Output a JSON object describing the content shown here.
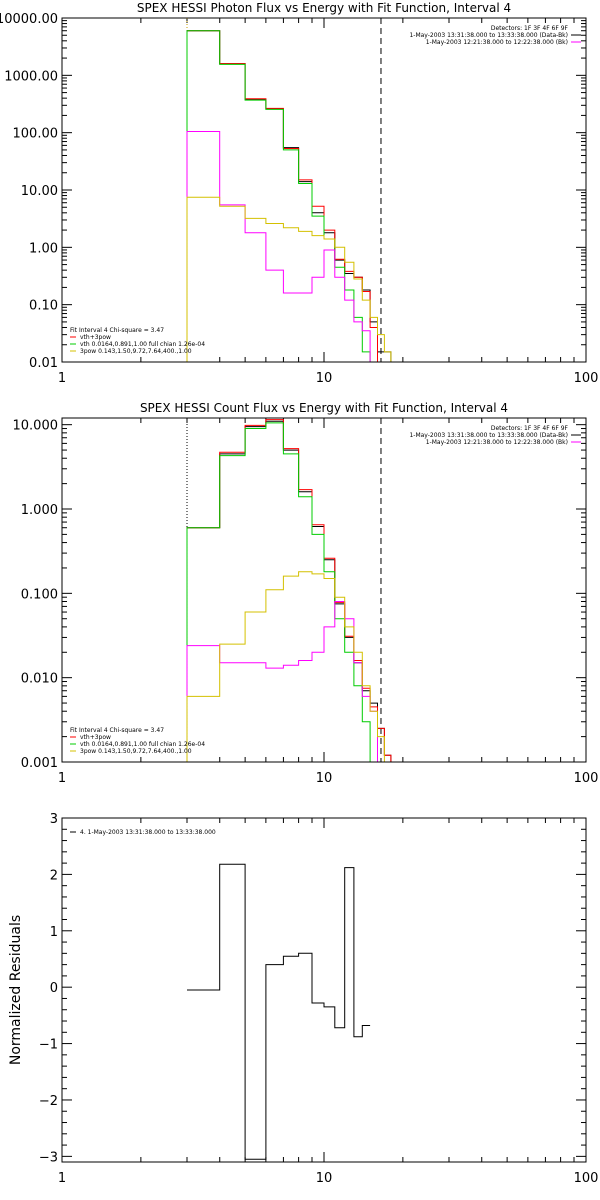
{
  "chart_data": [
    {
      "type": "line",
      "step": true,
      "title": "SPEX HESSI Photon Flux vs Energy with Fit Function, Interval 4",
      "xscale": "log",
      "yscale": "log",
      "xlim": [
        1,
        100
      ],
      "ylim": [
        0.01,
        10000
      ],
      "xticks": [
        {
          "v": 1,
          "label": "1"
        },
        {
          "v": 10,
          "label": "10"
        },
        {
          "v": 100,
          "label": "100"
        }
      ],
      "yticks": [
        {
          "v": 0.01,
          "label": "0.01"
        },
        {
          "v": 0.1,
          "label": "0.10"
        },
        {
          "v": 1,
          "label": "1.00"
        },
        {
          "v": 10,
          "label": "10.00"
        },
        {
          "v": 100,
          "label": "100.00"
        },
        {
          "v": 1000,
          "label": "1000.00"
        },
        {
          "v": 10000,
          "label": "10000.00"
        }
      ],
      "vlines": [
        {
          "x": 3.0,
          "style": "dotted",
          "color": "#c8a000"
        },
        {
          "x": 16.5,
          "style": "dashed",
          "color": "#000000"
        }
      ],
      "info_right": [
        {
          "text": "Detectors: 1F 3F 4F 6F 9F",
          "color": null
        },
        {
          "text": "1-May-2003 13:31:38.000 to 13:33:38.000 (Data-Bk)",
          "color": "#000000"
        },
        {
          "text": "1-May-2003 12:21:38.000 to 12:22:38.000 (Bk)",
          "color": "#ff00ff"
        }
      ],
      "legend_left": [
        {
          "text": "Fit Interval 4   Chi-square = 3.47",
          "color": null
        },
        {
          "text": "vth+3pow",
          "color": "#ff0000"
        },
        {
          "text": "vth 0.0164,0.891,1.00  full chian 1.26e-04",
          "color": "#00cc00"
        },
        {
          "text": "3pow 0.143,1.50,9.72,7.64,400.,1.00",
          "color": "#d4c000"
        }
      ],
      "edges": [
        3,
        4,
        5,
        6,
        7,
        8,
        9,
        10,
        11,
        12,
        13,
        14,
        15,
        16,
        17,
        18,
        19,
        20
      ],
      "series": [
        {
          "color": "#000000",
          "values": [
            6000,
            1600,
            380,
            260,
            55,
            14,
            4.0,
            1.8,
            0.6,
            0.35,
            0.3,
            0.18,
            0.05,
            0.015,
            0.015,
            null,
            null
          ]
        },
        {
          "color": "#ff0000",
          "values": [
            6000,
            1600,
            390,
            265,
            53,
            15,
            5.2,
            2.0,
            0.62,
            0.38,
            0.3,
            0.17,
            0.04,
            null,
            null,
            null,
            null
          ]
        },
        {
          "color": "#00cc00",
          "values": [
            6000,
            1550,
            370,
            255,
            50,
            13,
            3.5,
            1.4,
            0.45,
            0.18,
            0.06,
            0.015,
            null,
            null,
            null,
            null,
            null
          ]
        },
        {
          "color": "#ff00ff",
          "values": [
            105,
            5.5,
            1.8,
            0.4,
            0.16,
            0.16,
            0.3,
            0.9,
            0.3,
            0.12,
            0.05,
            0.035,
            null,
            null,
            null,
            null,
            null
          ]
        },
        {
          "color": "#d4c000",
          "values": [
            7.5,
            5.2,
            3.2,
            2.6,
            2.2,
            1.9,
            1.6,
            1.4,
            1.0,
            0.55,
            0.28,
            0.12,
            0.06,
            0.03,
            0.015,
            null,
            null
          ]
        }
      ]
    },
    {
      "type": "line",
      "step": true,
      "title": "SPEX HESSI Count Flux vs Energy with Fit Function, Interval 4",
      "xscale": "log",
      "yscale": "log",
      "xlim": [
        1,
        100
      ],
      "ylim": [
        0.001,
        12
      ],
      "xticks": [
        {
          "v": 1,
          "label": "1"
        },
        {
          "v": 10,
          "label": "10"
        },
        {
          "v": 100,
          "label": "100"
        }
      ],
      "yticks": [
        {
          "v": 0.001,
          "label": "0.001"
        },
        {
          "v": 0.01,
          "label": "0.010"
        },
        {
          "v": 0.1,
          "label": "0.100"
        },
        {
          "v": 1,
          "label": "1.000"
        },
        {
          "v": 10,
          "label": "10.000"
        }
      ],
      "vlines": [
        {
          "x": 3.0,
          "style": "dotted",
          "color": "#000000"
        },
        {
          "x": 16.5,
          "style": "dashed",
          "color": "#000000"
        }
      ],
      "info_right": [
        {
          "text": "Detectors: 1F 3F 4F 6F 9F",
          "color": null
        },
        {
          "text": "1-May-2003 13:31:38.000 to 13:33:38.000 (Data-Bk)",
          "color": "#000000"
        },
        {
          "text": "1-May-2003 12:21:38.000 to 12:22:38.000 (Bk)",
          "color": "#ff00ff"
        }
      ],
      "legend_left": [
        {
          "text": "Fit Interval 4   Chi-square = 3.47",
          "color": null
        },
        {
          "text": "vth+3pow",
          "color": "#ff0000"
        },
        {
          "text": "vth 0.0164,0.891,1.00  full chian 1.26e-04",
          "color": "#00cc00"
        },
        {
          "text": "3pow 0.143,1.50,9.72,7.64,400.,1.00",
          "color": "#d4c000"
        }
      ],
      "edges": [
        3,
        4,
        5,
        6,
        7,
        8,
        9,
        10,
        11,
        12,
        13,
        14,
        15,
        16,
        17,
        18,
        19,
        20
      ],
      "series": [
        {
          "color": "#000000",
          "values": [
            0.6,
            4.5,
            9.5,
            11,
            5.0,
            1.6,
            0.62,
            0.25,
            0.075,
            0.03,
            0.015,
            0.007,
            0.005,
            0.0025,
            0.0012,
            null,
            null
          ]
        },
        {
          "color": "#ff0000",
          "values": [
            0.6,
            4.7,
            9.8,
            11.5,
            5.2,
            1.7,
            0.65,
            0.26,
            0.078,
            0.031,
            0.016,
            0.0075,
            0.0045,
            0.0025,
            0.0012,
            null,
            null
          ]
        },
        {
          "color": "#00cc00",
          "values": [
            0.6,
            4.3,
            9.0,
            10.5,
            4.5,
            1.4,
            0.5,
            0.18,
            0.05,
            0.02,
            0.008,
            0.003,
            0.001,
            null,
            null,
            null,
            null
          ]
        },
        {
          "color": "#ff00ff",
          "values": [
            0.024,
            0.015,
            0.015,
            0.013,
            0.014,
            0.016,
            0.02,
            0.04,
            0.08,
            0.05,
            0.015,
            0.006,
            0.004,
            null,
            null,
            null,
            null
          ]
        },
        {
          "color": "#d4c000",
          "values": [
            0.006,
            0.025,
            0.06,
            0.11,
            0.16,
            0.18,
            0.17,
            0.15,
            0.09,
            0.04,
            0.02,
            0.008,
            0.004,
            0.002,
            0.001,
            null,
            null
          ]
        }
      ]
    },
    {
      "type": "line",
      "step": true,
      "title": "",
      "xscale": "log",
      "yscale": "linear",
      "xlim": [
        1,
        100
      ],
      "ylim": [
        -3.1,
        3
      ],
      "ylabel": "Normalized Residuals",
      "xticks": [
        {
          "v": 1,
          "label": "1"
        },
        {
          "v": 10,
          "label": "10"
        },
        {
          "v": 100,
          "label": "100"
        }
      ],
      "yticks": [
        {
          "v": -3,
          "label": "−3"
        },
        {
          "v": -2,
          "label": "−2"
        },
        {
          "v": -1,
          "label": "−1"
        },
        {
          "v": 0,
          "label": "0"
        },
        {
          "v": 1,
          "label": "1"
        },
        {
          "v": 2,
          "label": "2"
        },
        {
          "v": 3,
          "label": "3"
        }
      ],
      "vlines": [],
      "info_right": [],
      "legend_left": [
        {
          "text": "4. 1-May-2003 13:31:38.000 to 13:33:38.000",
          "color": "#000000"
        }
      ],
      "edges": [
        3,
        4,
        5,
        6,
        7,
        8,
        9,
        10,
        11,
        12,
        13,
        14,
        15,
        16.5
      ],
      "series": [
        {
          "color": "#000000",
          "values": [
            -0.05,
            2.18,
            -3.05,
            0.4,
            0.55,
            0.6,
            -0.28,
            -0.35,
            -0.72,
            2.12,
            -0.88,
            -0.68,
            null
          ]
        }
      ]
    }
  ]
}
